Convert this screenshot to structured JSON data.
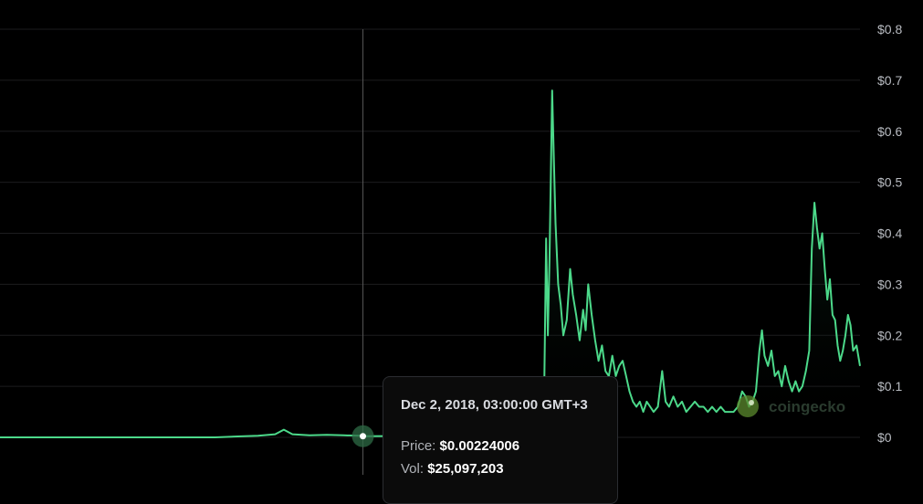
{
  "chart_data": {
    "type": "area",
    "ylim": [
      0,
      0.8
    ],
    "y_ticks": [
      "$0",
      "$0.1",
      "$0.2",
      "$0.3",
      "$0.4",
      "$0.5",
      "$0.6",
      "$0.7",
      "$0.8"
    ],
    "y_tick_values": [
      0,
      0.1,
      0.2,
      0.3,
      0.4,
      0.5,
      0.6,
      0.7,
      0.8
    ],
    "grid": true,
    "colors": {
      "line": "#4cd98a",
      "fill_top": "#1f5a3a",
      "grid": "#1c1c1e",
      "cursor": "#555555"
    },
    "x_index_range": [
      0,
      100
    ],
    "series": [
      {
        "points": [
          [
            0,
            0.0
          ],
          [
            5,
            0.0
          ],
          [
            10,
            0.0
          ],
          [
            15,
            0.0
          ],
          [
            20,
            0.0
          ],
          [
            25,
            0.0
          ],
          [
            28,
            0.002
          ],
          [
            30,
            0.003
          ],
          [
            32,
            0.006
          ],
          [
            33,
            0.015
          ],
          [
            34,
            0.006
          ],
          [
            36,
            0.004
          ],
          [
            38,
            0.005
          ],
          [
            40,
            0.004
          ],
          [
            42,
            0.003
          ],
          [
            42.2,
            0.0022
          ],
          [
            63.2,
            0.004
          ],
          [
            63.3,
            0.12
          ],
          [
            63.5,
            0.39
          ],
          [
            63.7,
            0.2
          ],
          [
            63.9,
            0.35
          ],
          [
            64.2,
            0.68
          ],
          [
            64.4,
            0.55
          ],
          [
            64.6,
            0.42
          ],
          [
            64.9,
            0.3
          ],
          [
            65.2,
            0.26
          ],
          [
            65.5,
            0.2
          ],
          [
            65.9,
            0.23
          ],
          [
            66.3,
            0.33
          ],
          [
            66.6,
            0.28
          ],
          [
            67.0,
            0.24
          ],
          [
            67.4,
            0.19
          ],
          [
            67.8,
            0.25
          ],
          [
            68.1,
            0.21
          ],
          [
            68.4,
            0.3
          ],
          [
            68.8,
            0.24
          ],
          [
            69.2,
            0.19
          ],
          [
            69.6,
            0.15
          ],
          [
            70.0,
            0.18
          ],
          [
            70.4,
            0.13
          ],
          [
            70.8,
            0.12
          ],
          [
            71.2,
            0.16
          ],
          [
            71.6,
            0.12
          ],
          [
            72.0,
            0.14
          ],
          [
            72.4,
            0.15
          ],
          [
            72.8,
            0.12
          ],
          [
            73.2,
            0.09
          ],
          [
            73.6,
            0.07
          ],
          [
            74.0,
            0.06
          ],
          [
            74.4,
            0.07
          ],
          [
            74.8,
            0.05
          ],
          [
            75.2,
            0.07
          ],
          [
            75.6,
            0.06
          ],
          [
            76.0,
            0.05
          ],
          [
            76.5,
            0.06
          ],
          [
            77.0,
            0.13
          ],
          [
            77.4,
            0.07
          ],
          [
            77.8,
            0.06
          ],
          [
            78.3,
            0.08
          ],
          [
            78.8,
            0.06
          ],
          [
            79.3,
            0.07
          ],
          [
            79.8,
            0.05
          ],
          [
            80.3,
            0.06
          ],
          [
            80.8,
            0.07
          ],
          [
            81.3,
            0.06
          ],
          [
            81.8,
            0.06
          ],
          [
            82.3,
            0.05
          ],
          [
            82.8,
            0.06
          ],
          [
            83.3,
            0.05
          ],
          [
            83.8,
            0.06
          ],
          [
            84.3,
            0.05
          ],
          [
            84.8,
            0.05
          ],
          [
            85.3,
            0.05
          ],
          [
            85.8,
            0.06
          ],
          [
            86.3,
            0.09
          ],
          [
            86.7,
            0.08
          ],
          [
            87.1,
            0.06
          ],
          [
            87.5,
            0.07
          ],
          [
            87.9,
            0.09
          ],
          [
            88.3,
            0.17
          ],
          [
            88.6,
            0.21
          ],
          [
            88.9,
            0.16
          ],
          [
            89.3,
            0.14
          ],
          [
            89.7,
            0.17
          ],
          [
            90.1,
            0.12
          ],
          [
            90.5,
            0.13
          ],
          [
            90.9,
            0.1
          ],
          [
            91.3,
            0.14
          ],
          [
            91.7,
            0.11
          ],
          [
            92.1,
            0.09
          ],
          [
            92.5,
            0.11
          ],
          [
            92.9,
            0.09
          ],
          [
            93.3,
            0.1
          ],
          [
            93.7,
            0.13
          ],
          [
            94.1,
            0.17
          ],
          [
            94.4,
            0.37
          ],
          [
            94.7,
            0.46
          ],
          [
            95.0,
            0.41
          ],
          [
            95.3,
            0.37
          ],
          [
            95.6,
            0.4
          ],
          [
            95.9,
            0.33
          ],
          [
            96.2,
            0.27
          ],
          [
            96.5,
            0.31
          ],
          [
            96.8,
            0.24
          ],
          [
            97.1,
            0.23
          ],
          [
            97.4,
            0.18
          ],
          [
            97.7,
            0.15
          ],
          [
            98.0,
            0.17
          ],
          [
            98.3,
            0.2
          ],
          [
            98.6,
            0.24
          ],
          [
            98.9,
            0.22
          ],
          [
            99.2,
            0.17
          ],
          [
            99.6,
            0.18
          ],
          [
            100,
            0.14
          ]
        ]
      }
    ],
    "cursor_index": 42.2,
    "watermark": "coingecko"
  },
  "tooltip": {
    "date": "Dec 2, 2018, 03:00:00 GMT+3",
    "price_label": "Price:",
    "price_value": "$0.00224006",
    "vol_label": "Vol:",
    "vol_value": "$25,097,203"
  }
}
